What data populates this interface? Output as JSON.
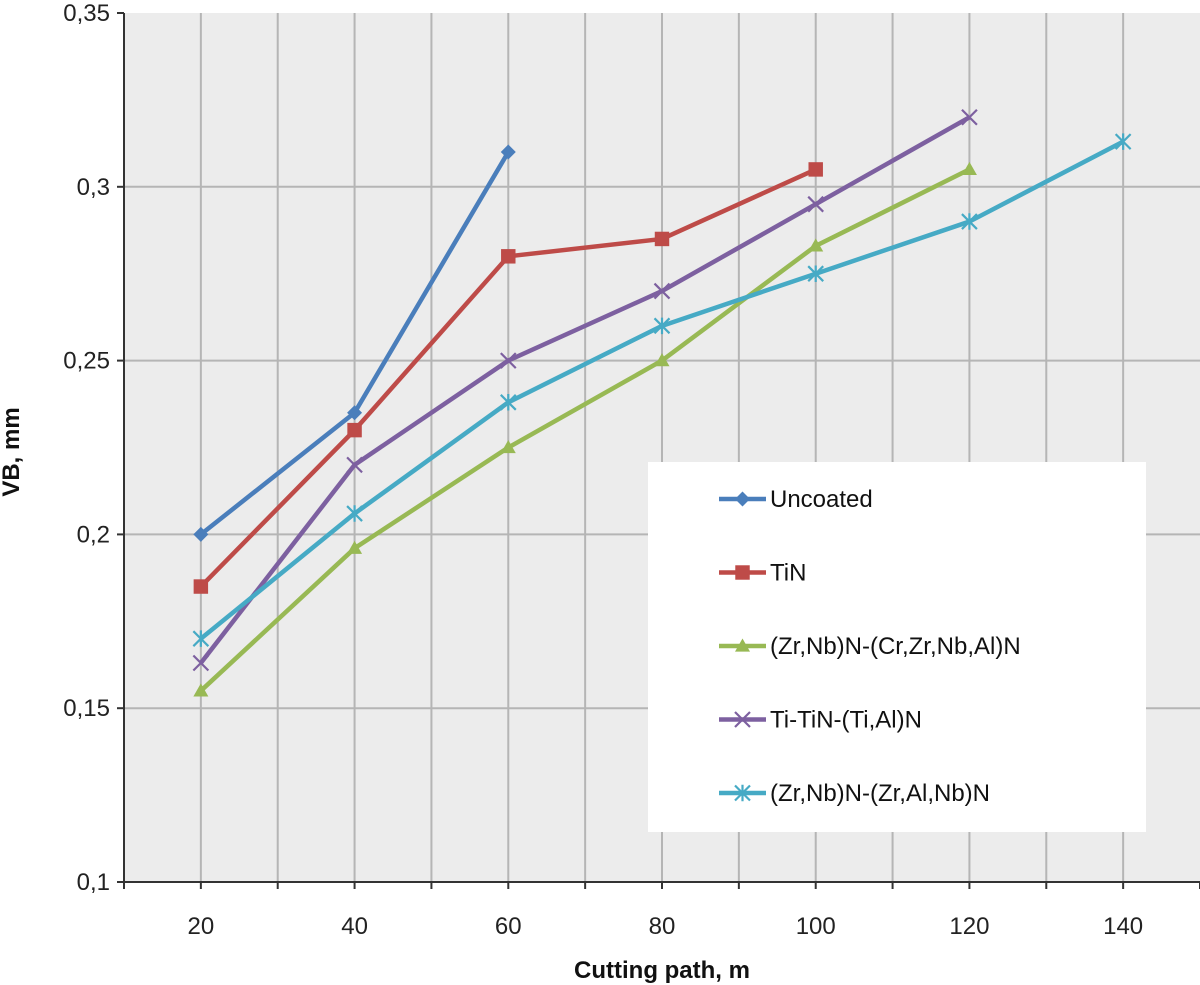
{
  "chart_data": {
    "type": "line",
    "title": "",
    "xlabel": "Cutting path, m",
    "ylabel": "VB, mm",
    "x_ticks": [
      "20",
      "40",
      "60",
      "80",
      "100",
      "120",
      "140"
    ],
    "y_ticks": [
      "0,1",
      "0,15",
      "0,2",
      "0,25",
      "0,3",
      "0,35"
    ],
    "xlim": [
      10,
      150
    ],
    "ylim": [
      0.1,
      0.35
    ],
    "grid": true,
    "legend_position": "lower-right",
    "series": [
      {
        "name": "Uncoated",
        "color": "#4a7ebb",
        "marker": "diamond",
        "x": [
          20,
          40,
          60
        ],
        "y": [
          0.2,
          0.235,
          0.31
        ]
      },
      {
        "name": "TiN",
        "color": "#be4b48",
        "marker": "square",
        "x": [
          20,
          40,
          60,
          80,
          100
        ],
        "y": [
          0.185,
          0.23,
          0.28,
          0.285,
          0.305
        ]
      },
      {
        "name": "(Zr,Nb)N-(Cr,Zr,Nb,Al)N",
        "color": "#98b954",
        "marker": "triangle",
        "x": [
          20,
          40,
          60,
          80,
          100,
          120
        ],
        "y": [
          0.155,
          0.196,
          0.225,
          0.25,
          0.283,
          0.305
        ]
      },
      {
        "name": "Ti-TiN-(Ti,Al)N",
        "color": "#7d60a0",
        "marker": "x",
        "x": [
          20,
          40,
          60,
          80,
          100,
          120
        ],
        "y": [
          0.163,
          0.22,
          0.25,
          0.27,
          0.295,
          0.32
        ]
      },
      {
        "name": "(Zr,Nb)N-(Zr,Al,Nb)N",
        "color": "#46aac5",
        "marker": "star",
        "x": [
          20,
          40,
          60,
          80,
          100,
          120,
          140
        ],
        "y": [
          0.17,
          0.206,
          0.238,
          0.26,
          0.275,
          0.29,
          0.313
        ]
      }
    ]
  }
}
